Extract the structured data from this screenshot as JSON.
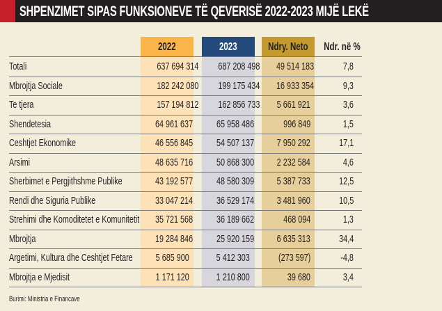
{
  "title": "SHPENZIMET SIPAS FUNKSIONEVE TË QEVERISË 2022-2023 MIJË LEKË",
  "colors": {
    "title_bg": "#231f20",
    "accent_red": "#c8202a",
    "header_2022": "#fbb44a",
    "col_2022": "#fde2b8",
    "header_2023": "#244a7c",
    "col_2023": "#d6d6dc",
    "header_neto": "#c49a2e",
    "col_neto": "#e6cf9a",
    "background": "#f3eedc"
  },
  "headers": [
    "2022",
    "2023",
    "Ndry. Neto",
    "Ndr. në %"
  ],
  "rows": [
    {
      "label": "Totali",
      "v2022": "637 694 314",
      "v2023": "687 208 498",
      "neto": "49 514 183",
      "pct": "7,8"
    },
    {
      "label": "Mbrojtja Sociale",
      "v2022": "182 242 080",
      "v2023": "199 175 434",
      "neto": "16 933 354",
      "pct": "9,3"
    },
    {
      "label": "Te tjera",
      "v2022": "157 194 812",
      "v2023": "162 856 733",
      "neto": "5 661 921",
      "pct": "3,6"
    },
    {
      "label": "Shendetesia",
      "v2022": "64 961 637",
      "v2023": "65 958 486",
      "neto": "996 849",
      "pct": "1,5"
    },
    {
      "label": "Ceshtjet Ekonomike",
      "v2022": "46 556 845",
      "v2023": "54 507 137",
      "neto": "7 950 292",
      "pct": "17,1"
    },
    {
      "label": "Arsimi",
      "v2022": "48 635 716",
      "v2023": "50 868 300",
      "neto": "2 232 584",
      "pct": "4,6"
    },
    {
      "label": "Sherbimet e Pergjithshme Publike",
      "v2022": "43 192 577",
      "v2023": "48 580 309",
      "neto": "5 387 733",
      "pct": "12,5"
    },
    {
      "label": "Rendi dhe Siguria Publike",
      "v2022": "33 047 214",
      "v2023": "36 529 174",
      "neto": "3 481 960",
      "pct": "10,5"
    },
    {
      "label": "Strehimi dhe Komoditetet e Komunitetit",
      "v2022": "35 721 568",
      "v2023": "36 189 662",
      "neto": "468 094",
      "pct": "1,3"
    },
    {
      "label": "Mbrojtja",
      "v2022": "19 284 846",
      "v2023": "25 920 159",
      "neto": "6 635 313",
      "pct": "34,4"
    },
    {
      "label": "Argetimi, Kultura dhe Ceshtjet Fetare",
      "v2022": "5 685 900",
      "v2023": "5 412 303",
      "neto": "(273 597)",
      "pct": "-4,8"
    },
    {
      "label": "Mbrojtja e Mjedisit",
      "v2022": "1 171 120",
      "v2023": "1 210 800",
      "neto": "39 680",
      "pct": "3,4"
    }
  ],
  "source": "Burimi: Ministria e Financave",
  "chart_data": {
    "type": "table",
    "title": "SHPENZIMET SIPAS FUNKSIONEVE TË QEVERISË 2022-2023 MIJË LEKË",
    "columns": [
      "",
      "2022",
      "2023",
      "Ndry. Neto",
      "Ndr. në %"
    ],
    "units": "mijë lekë"
  }
}
